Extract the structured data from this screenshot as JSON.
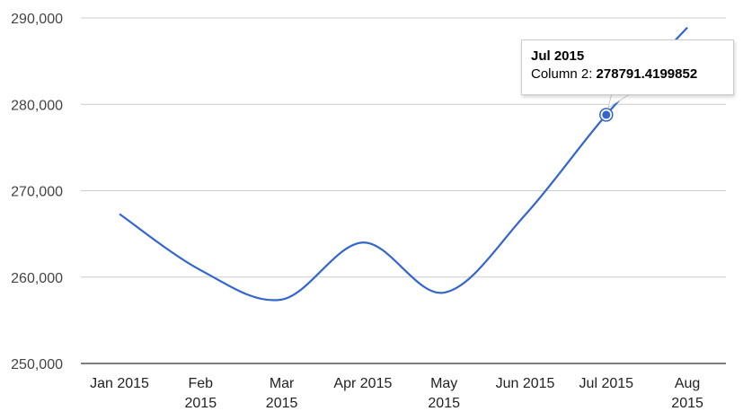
{
  "chart_data": {
    "type": "line",
    "categories": [
      "Jan 2015",
      "Feb 2015",
      "Mar 2015",
      "Apr 2015",
      "May 2015",
      "Jun 2015",
      "Jul 2015",
      "Aug 2015"
    ],
    "x_tick_lines": [
      [
        "Jan 2015"
      ],
      [
        "Feb",
        "2015"
      ],
      [
        "Mar",
        "2015"
      ],
      [
        "Apr 2015"
      ],
      [
        "May",
        "2015"
      ],
      [
        "Jun 2015"
      ],
      [
        "Jul 2015"
      ],
      [
        "Aug",
        "2015"
      ]
    ],
    "series": [
      {
        "name": "Column 2",
        "values": [
          267300,
          260800,
          257400,
          264000,
          258200,
          267200,
          278791.4199852,
          288900
        ]
      }
    ],
    "y_ticks": [
      "250,000",
      "260,000",
      "270,000",
      "280,000",
      "290,000"
    ],
    "y_tick_values": [
      250000,
      260000,
      270000,
      280000,
      290000
    ],
    "ylim": [
      250000,
      290000
    ],
    "grid": true,
    "line_color": "#3366cc",
    "highlight_index": 6,
    "tooltip": {
      "title": "Jul 2015",
      "label": "Column 2:",
      "value": "278791.4199852"
    }
  }
}
